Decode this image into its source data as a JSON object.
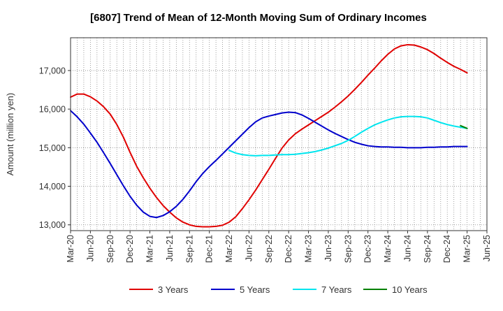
{
  "chart_data": {
    "type": "line",
    "title": "[6807]  Trend of Mean of 12-Month Moving Sum of Ordinary Incomes",
    "ylabel": "Amount (million yen)",
    "xlabel": "",
    "ylim": [
      12850,
      17850
    ],
    "yticks": [
      13000,
      14000,
      15000,
      16000,
      17000
    ],
    "ytick_labels": [
      "13,000",
      "14,000",
      "15,000",
      "16,000",
      "17,000"
    ],
    "xlim": [
      0,
      63
    ],
    "xticks": [
      0,
      3,
      6,
      9,
      12,
      15,
      18,
      21,
      24,
      27,
      30,
      33,
      36,
      39,
      42,
      45,
      48,
      51,
      54,
      57,
      60,
      63
    ],
    "xtick_labels": [
      "Mar-20",
      "Jun-20",
      "Sep-20",
      "Dec-20",
      "Mar-21",
      "Jun-21",
      "Sep-21",
      "Dec-21",
      "Mar-22",
      "Jun-22",
      "Sep-22",
      "Dec-22",
      "Mar-23",
      "Jun-23",
      "Sep-23",
      "Dec-23",
      "Mar-24",
      "Jun-24",
      "Sep-24",
      "Dec-24",
      "Mar-25",
      "Jun-25"
    ],
    "grid": true,
    "legend_position": "bottom",
    "series": [
      {
        "name": "3 Years",
        "color": "#e00000",
        "x": [
          0,
          1,
          2,
          3,
          4,
          5,
          6,
          7,
          8,
          9,
          10,
          11,
          12,
          13,
          14,
          15,
          16,
          17,
          18,
          19,
          20,
          21,
          22,
          23,
          24,
          25,
          26,
          27,
          28,
          29,
          30,
          31,
          32,
          33,
          34,
          35,
          36,
          37,
          38,
          39,
          40,
          41,
          42,
          43,
          44,
          45,
          46,
          47,
          48,
          49,
          50,
          51,
          52,
          53,
          54,
          55,
          56,
          57,
          58,
          59,
          60
        ],
        "values": [
          16310,
          16390,
          16390,
          16320,
          16210,
          16060,
          15870,
          15600,
          15270,
          14880,
          14520,
          14220,
          13950,
          13710,
          13500,
          13330,
          13180,
          13070,
          13000,
          12960,
          12950,
          12950,
          12960,
          12990,
          13070,
          13210,
          13420,
          13650,
          13900,
          14170,
          14440,
          14720,
          14990,
          15200,
          15360,
          15480,
          15590,
          15700,
          15810,
          15920,
          16050,
          16190,
          16340,
          16510,
          16690,
          16880,
          17060,
          17250,
          17420,
          17560,
          17640,
          17670,
          17660,
          17610,
          17540,
          17440,
          17320,
          17210,
          17110,
          17030,
          16940
        ]
      },
      {
        "name": "5 Years",
        "color": "#0000cc",
        "x": [
          0,
          1,
          2,
          3,
          4,
          5,
          6,
          7,
          8,
          9,
          10,
          11,
          12,
          13,
          14,
          15,
          16,
          17,
          18,
          19,
          20,
          21,
          22,
          23,
          24,
          25,
          26,
          27,
          28,
          29,
          30,
          31,
          32,
          33,
          34,
          35,
          36,
          37,
          38,
          39,
          40,
          41,
          42,
          43,
          44,
          45,
          46,
          47,
          48,
          49,
          50,
          51,
          52,
          53,
          54,
          55,
          56,
          57,
          58,
          59,
          60
        ],
        "values": [
          15960,
          15800,
          15610,
          15380,
          15140,
          14870,
          14590,
          14300,
          14010,
          13740,
          13510,
          13330,
          13220,
          13190,
          13240,
          13340,
          13480,
          13660,
          13880,
          14120,
          14330,
          14510,
          14670,
          14840,
          15010,
          15180,
          15350,
          15520,
          15670,
          15770,
          15820,
          15860,
          15900,
          15920,
          15910,
          15850,
          15760,
          15660,
          15560,
          15460,
          15370,
          15290,
          15210,
          15140,
          15090,
          15050,
          15030,
          15020,
          15020,
          15010,
          15010,
          15000,
          15000,
          15000,
          15010,
          15010,
          15020,
          15020,
          15030,
          15030,
          15030
        ]
      },
      {
        "name": "7 Years",
        "color": "#00e5ee",
        "x": [
          24,
          25,
          26,
          27,
          28,
          29,
          30,
          31,
          32,
          33,
          34,
          35,
          36,
          37,
          38,
          39,
          40,
          41,
          42,
          43,
          44,
          45,
          46,
          47,
          48,
          49,
          50,
          51,
          52,
          53,
          54,
          55,
          56,
          57,
          58,
          59,
          60
        ],
        "values": [
          14930,
          14860,
          14820,
          14800,
          14790,
          14800,
          14800,
          14810,
          14820,
          14820,
          14830,
          14850,
          14870,
          14900,
          14940,
          14990,
          15050,
          15110,
          15190,
          15290,
          15400,
          15500,
          15590,
          15660,
          15720,
          15770,
          15800,
          15810,
          15810,
          15800,
          15770,
          15710,
          15650,
          15600,
          15560,
          15530,
          15500
        ]
      },
      {
        "name": "10 Years",
        "color": "#008000",
        "x": [
          59,
          60
        ],
        "values": [
          15570,
          15500
        ]
      }
    ]
  }
}
